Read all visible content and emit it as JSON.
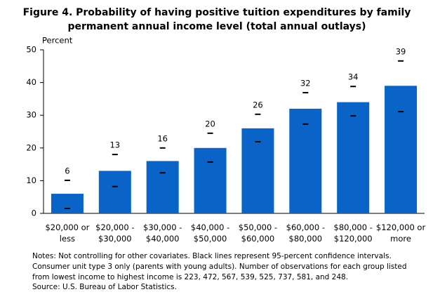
{
  "chart_data": {
    "type": "bar",
    "title": "Figure 4. Probability of having positive tuition expenditures by family permanent annual income level (total annual outlays)",
    "y_label": "Percent",
    "categories": [
      [
        "$20,000 or",
        "less"
      ],
      [
        "$20,000 -",
        "$30,000"
      ],
      [
        "$30,000 -",
        "$40,000"
      ],
      [
        "$40,000 -",
        "$50,000"
      ],
      [
        "$50,000 -",
        "$60,000"
      ],
      [
        "$60,000 -",
        "$80,000"
      ],
      [
        "$80,000 -",
        "$120,000"
      ],
      [
        "$120,000 or",
        "more"
      ]
    ],
    "values": [
      6,
      13,
      16,
      20,
      26,
      32,
      34,
      39
    ],
    "ci_low": [
      1.5,
      8.2,
      12.4,
      15.7,
      21.9,
      27.3,
      29.8,
      31.1
    ],
    "ci_high": [
      10.1,
      18.0,
      20.0,
      24.5,
      30.3,
      36.9,
      38.8,
      46.6
    ],
    "color": "#0a64c8",
    "ylim": [
      0,
      50
    ],
    "yticks": [
      0,
      10,
      20,
      30,
      40,
      50
    ],
    "grid": false,
    "notes": "Notes: Not controlling for other covariates. Black lines represent 95-percent confidence intervals. Consumer unit type 3 only (parents with young adults). Number of observations for each group listed from lowest income to highest income is 223, 472, 567, 539, 525, 737, 581, and 248.",
    "source": "Source: U.S. Bureau of Labor Statistics."
  }
}
